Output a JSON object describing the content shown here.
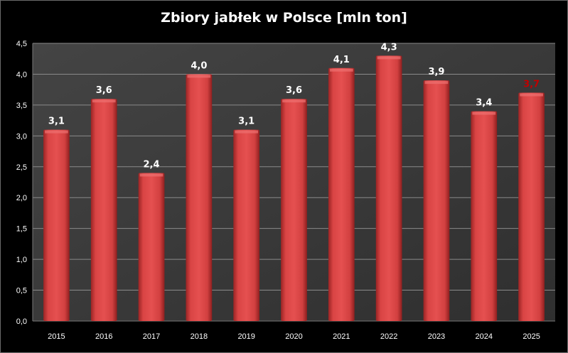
{
  "chart_data": {
    "type": "bar",
    "title": "Zbiory jabłek w Polsce [mln ton]",
    "xlabel": "",
    "ylabel": "",
    "categories": [
      "2015",
      "2016",
      "2017",
      "2018",
      "2019",
      "2020",
      "2021",
      "2022",
      "2023",
      "2024",
      "2025"
    ],
    "values": [
      3.1,
      3.6,
      2.4,
      4.0,
      3.1,
      3.6,
      4.1,
      4.3,
      3.9,
      3.4,
      3.7
    ],
    "value_labels": [
      "3,1",
      "3,6",
      "2,4",
      "4,0",
      "3,1",
      "3,6",
      "4,1",
      "4,3",
      "3,9",
      "3,4",
      "3,7"
    ],
    "highlight_index": 10,
    "ylim": [
      0,
      4.5
    ],
    "y_ticks": [
      "0,0",
      "0,5",
      "1,0",
      "1,5",
      "2,0",
      "2,5",
      "3,0",
      "3,5",
      "4,0",
      "4,5"
    ],
    "grid": true,
    "colors": {
      "bar": "#d84040",
      "bar_dark": "#8e1f1f",
      "plot_bg": "#3b3b3b",
      "grid": "#8a8a8a",
      "highlight_label": "#c00000"
    }
  }
}
